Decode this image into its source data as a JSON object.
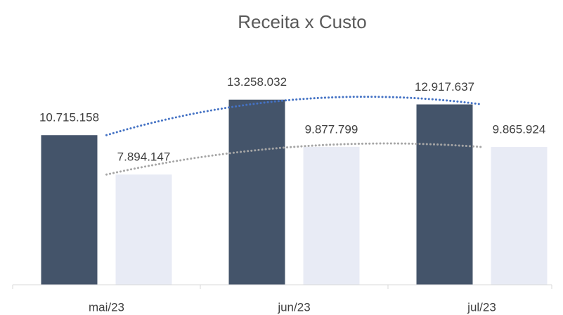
{
  "chart_data": {
    "type": "bar",
    "title": "Receita x Custo",
    "categories": [
      "mai/23",
      "jun/23",
      "jul/23"
    ],
    "series": [
      {
        "color": "#44546a",
        "trendline_color": "#4472c4",
        "values": [
          10715158,
          13258032,
          12917637
        ],
        "value_labels": [
          "10.715.158",
          "13.258.032",
          "12.917.637"
        ]
      },
      {
        "color": "#e8ebf5",
        "trendline_color": "#a5a5a5",
        "values": [
          7894147,
          9877799,
          9865924
        ],
        "value_labels": [
          "7.894.147",
          "9.877.799",
          "9.865.924"
        ]
      }
    ],
    "ylim": [
      0,
      14000000
    ],
    "trendline": "polynomial",
    "grid": false
  }
}
